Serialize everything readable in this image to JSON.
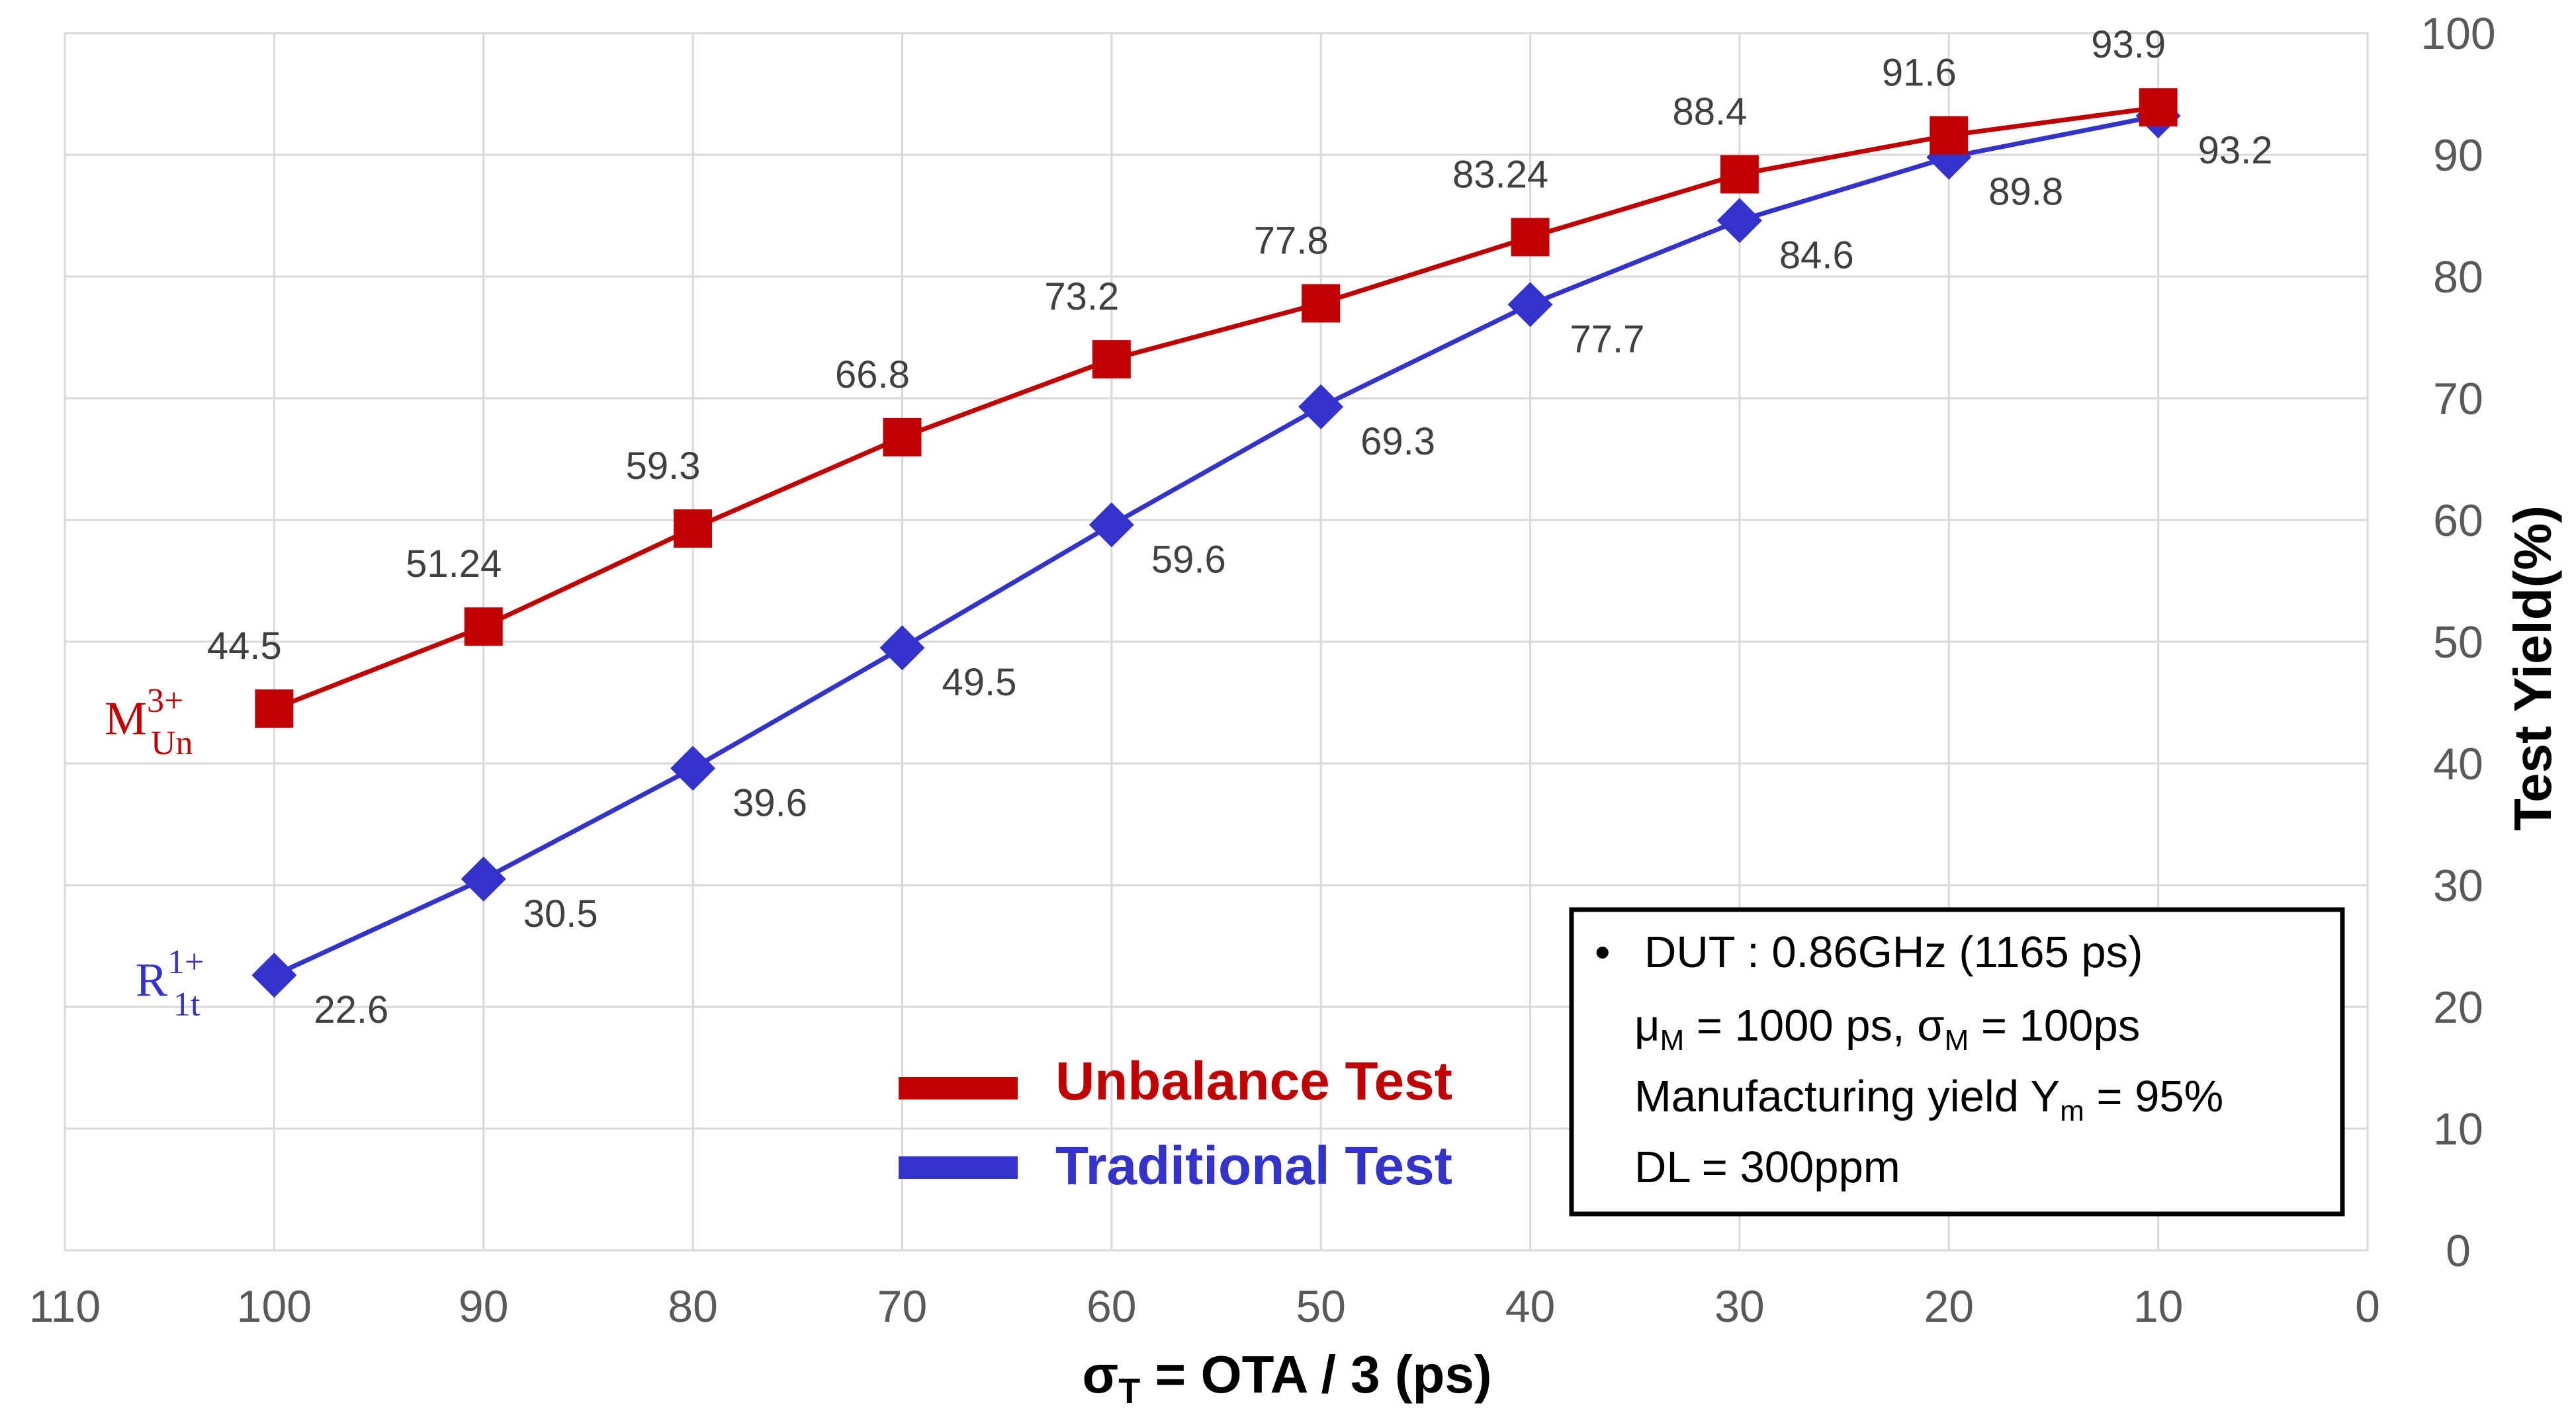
{
  "chart_data": {
    "type": "line",
    "xlabel": {
      "main": "σ",
      "sub": "T",
      "rest": " = OTA / 3 (ps)"
    },
    "ylabel": "Test Yield(%)",
    "xlim": [
      110,
      0
    ],
    "ylim": [
      0,
      100
    ],
    "x_ticks": [
      "110",
      "100",
      "90",
      "80",
      "70",
      "60",
      "50",
      "40",
      "30",
      "20",
      "10",
      "0"
    ],
    "y_ticks": [
      "0",
      "10",
      "20",
      "30",
      "40",
      "50",
      "60",
      "70",
      "80",
      "90",
      "100"
    ],
    "x": [
      100,
      90,
      80,
      70,
      60,
      50,
      40,
      30,
      20,
      10
    ],
    "series": [
      {
        "name": "Unbalance Test",
        "color": "#C00000",
        "marker": "square",
        "values": [
          44.5,
          51.24,
          59.3,
          66.8,
          73.2,
          77.8,
          83.24,
          88.4,
          91.6,
          93.9
        ],
        "labels": [
          "44.5",
          "51.24",
          "59.3",
          "66.8",
          "73.2",
          "77.8",
          "83.24",
          "88.4",
          "91.6",
          "93.9"
        ],
        "tag": {
          "base": "M",
          "sup": "3+",
          "sub": "Un"
        }
      },
      {
        "name": "Traditional Test",
        "color": "#3333CC",
        "marker": "diamond",
        "values": [
          22.6,
          30.5,
          39.6,
          49.5,
          59.6,
          69.3,
          77.7,
          84.6,
          89.8,
          93.2
        ],
        "labels": [
          "22.6",
          "30.5",
          "39.6",
          "49.5",
          "59.6",
          "69.3",
          "77.7",
          "84.6",
          "89.8",
          "93.2"
        ],
        "tag": {
          "base": "R",
          "sup": "1+",
          "sub": "1t"
        }
      }
    ],
    "legend": [
      "Unbalance Test",
      "Traditional Test"
    ],
    "annotation": {
      "bullet": "•",
      "line1": "DUT : 0.86GHz (1165 ps)",
      "line2": {
        "mu": "μ",
        "mu_sub": "M",
        "mu_rest": " = 1000 ps, ",
        "sigma": "σ",
        "sigma_sub": "M",
        "sigma_rest": " = 100ps"
      },
      "line3": {
        "text": "Manufacturing yield Y",
        "sub": "m",
        "rest": " = 95%"
      },
      "line4": "DL = 300ppm",
      "line4_color": "#C00000"
    },
    "grid": true
  }
}
